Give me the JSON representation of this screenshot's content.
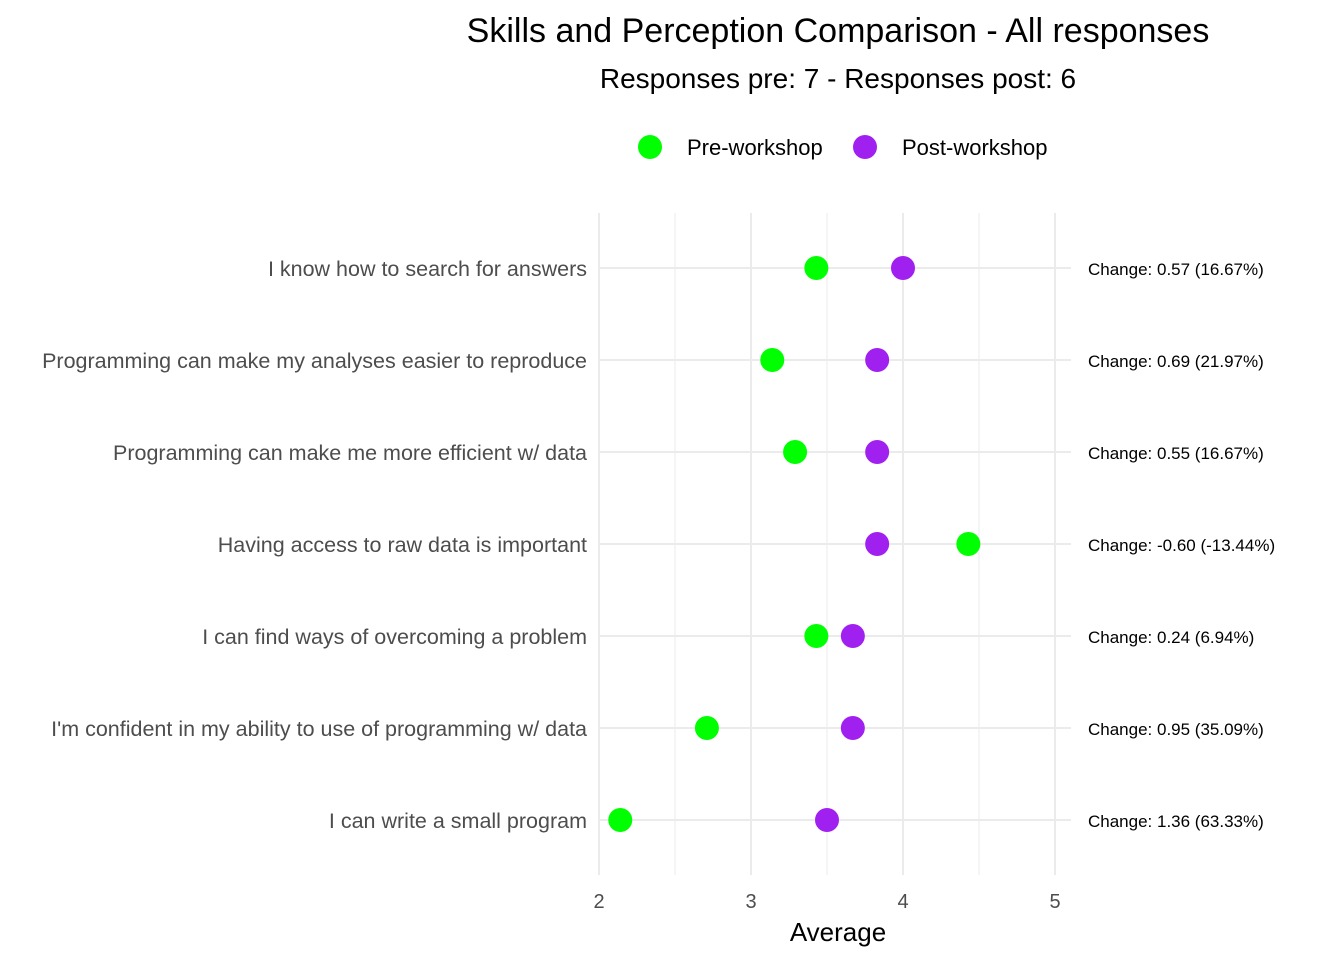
{
  "chart_data": {
    "type": "scatter",
    "title": "Skills and Perception Comparison - All responses",
    "subtitle": "Responses pre: 7 - Responses post: 6",
    "xlabel": "Average",
    "ylabel": "",
    "xlim": [
      2,
      5
    ],
    "x_ticks": [
      "2",
      "3",
      "4",
      "5"
    ],
    "grid": true,
    "legend_position": "top",
    "categories": [
      "I know how to search for answers",
      "Programming can make my analyses easier to reproduce",
      "Programming can make me more efficient w/ data",
      "Having access to raw data is important",
      "I can find ways of overcoming a problem",
      "I'm confident in my ability to use of programming w/ data",
      "I can write a small program"
    ],
    "series": [
      {
        "name": "Pre-workshop",
        "color": "#00ff00",
        "values": [
          3.43,
          3.14,
          3.29,
          4.43,
          3.43,
          2.71,
          2.14
        ]
      },
      {
        "name": "Post-workshop",
        "color": "#a020f0",
        "values": [
          4.0,
          3.83,
          3.83,
          3.83,
          3.67,
          3.67,
          3.5
        ]
      }
    ],
    "change_labels": [
      "Change: 0.57 (16.67%)",
      "Change: 0.69 (21.97%)",
      "Change: 0.55 (16.67%)",
      "Change: -0.60 (-13.44%)",
      "Change: 0.24 (6.94%)",
      "Change: 0.95 (35.09%)",
      "Change: 1.36 (63.33%)"
    ]
  }
}
